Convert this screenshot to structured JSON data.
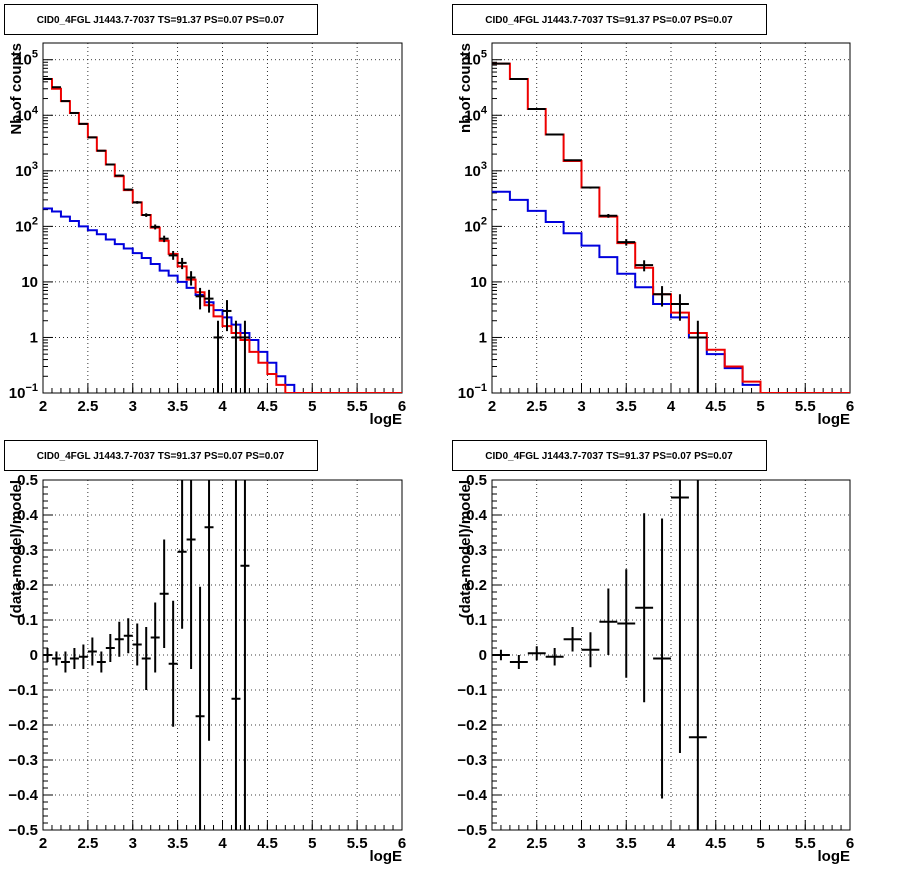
{
  "chart_data": [
    {
      "id": "top-left",
      "type": "line",
      "title": "CID0_4FGL J1443.7-7037 TS=91.37 PS=0.07 PS=0.07",
      "xlabel": "logE",
      "ylabel": "Nb of counts",
      "xlim": [
        2,
        6
      ],
      "ylim": [
        0.1,
        200000
      ],
      "yscale": "log",
      "xticks": [
        "2",
        "2.5",
        "3",
        "3.5",
        "4",
        "4.5",
        "5",
        "5.5",
        "6"
      ],
      "yticks": [
        {
          "v": 0.1,
          "base": "10",
          "exp": "−1"
        },
        {
          "v": 1,
          "base": "1",
          "exp": ""
        },
        {
          "v": 10,
          "base": "10",
          "exp": ""
        },
        {
          "v": 100,
          "base": "10",
          "exp": "2"
        },
        {
          "v": 1000,
          "base": "10",
          "exp": "3"
        },
        {
          "v": 10000,
          "base": "10",
          "exp": "4"
        },
        {
          "v": 100000,
          "base": "10",
          "exp": "5"
        }
      ],
      "grid": true,
      "bin_edges": [
        2.0,
        2.1,
        2.2,
        2.3,
        2.4,
        2.5,
        2.6,
        2.7,
        2.8,
        2.9,
        3.0,
        3.1,
        3.2,
        3.3,
        3.4,
        3.5,
        3.6,
        3.7,
        3.8,
        3.9,
        4.0,
        4.1,
        4.2,
        4.3,
        4.4,
        4.5,
        4.6,
        4.7,
        4.8,
        4.9,
        5.0,
        5.1,
        5.2,
        5.3,
        5.4,
        5.5,
        5.6,
        5.7,
        5.8,
        5.9,
        6.0
      ],
      "series": [
        {
          "name": "",
          "color": "#ee0000",
          "values": [
            45000,
            30000,
            18000,
            11000,
            7000,
            4000,
            2300,
            1300,
            800,
            450,
            270,
            160,
            95,
            55,
            32,
            19,
            11,
            6.5,
            3.8,
            2.4,
            1.6,
            1.2,
            0.9,
            0.55,
            0.35,
            0.22,
            0.14,
            0.1,
            0.1,
            0.1,
            0.1,
            0.1,
            0.1,
            0.1,
            0.1,
            0.1,
            0.1,
            0.1,
            0.1,
            0.1
          ]
        },
        {
          "name": "",
          "color": "#0000dd",
          "values": [
            210,
            185,
            150,
            125,
            100,
            85,
            72,
            58,
            48,
            40,
            33,
            27,
            21,
            16,
            13,
            10,
            7.8,
            5.8,
            4.3,
            3.1,
            2.3,
            1.7,
            1.2,
            0.9,
            0.55,
            0.35,
            0.2,
            0.14,
            0.1,
            0.1,
            0.1,
            0.1,
            0.1,
            0.1,
            0.1,
            0.1,
            0.1,
            0.1,
            0.1,
            0.1
          ]
        }
      ],
      "data_points": [
        {
          "x": 2.05,
          "y": 45000,
          "ylo": 44600,
          "yhi": 45400
        },
        {
          "x": 2.15,
          "y": 32000,
          "ylo": 31700,
          "yhi": 32300
        },
        {
          "x": 2.25,
          "y": 18000,
          "ylo": 17800,
          "yhi": 18200
        },
        {
          "x": 2.35,
          "y": 11000,
          "ylo": 10800,
          "yhi": 11200
        },
        {
          "x": 2.45,
          "y": 7000,
          "ylo": 6900,
          "yhi": 7100
        },
        {
          "x": 2.55,
          "y": 4000,
          "ylo": 3930,
          "yhi": 4070
        },
        {
          "x": 2.65,
          "y": 2300,
          "ylo": 2250,
          "yhi": 2350
        },
        {
          "x": 2.75,
          "y": 1300,
          "ylo": 1260,
          "yhi": 1340
        },
        {
          "x": 2.85,
          "y": 820,
          "ylo": 790,
          "yhi": 850
        },
        {
          "x": 2.95,
          "y": 460,
          "ylo": 440,
          "yhi": 480
        },
        {
          "x": 3.05,
          "y": 270,
          "ylo": 255,
          "yhi": 285
        },
        {
          "x": 3.15,
          "y": 160,
          "ylo": 148,
          "yhi": 172
        },
        {
          "x": 3.25,
          "y": 98,
          "ylo": 88,
          "yhi": 108
        },
        {
          "x": 3.35,
          "y": 60,
          "ylo": 52,
          "yhi": 68
        },
        {
          "x": 3.45,
          "y": 30,
          "ylo": 25,
          "yhi": 36
        },
        {
          "x": 3.55,
          "y": 22,
          "ylo": 17,
          "yhi": 27
        },
        {
          "x": 3.65,
          "y": 12,
          "ylo": 8.6,
          "yhi": 15.6
        },
        {
          "x": 3.75,
          "y": 5.5,
          "ylo": 3.2,
          "yhi": 7.8
        },
        {
          "x": 3.85,
          "y": 5,
          "ylo": 2.8,
          "yhi": 7.2
        },
        {
          "x": 3.95,
          "y": 1,
          "ylo": 0.1,
          "yhi": 2
        },
        {
          "x": 4.05,
          "y": 3,
          "ylo": 1.3,
          "yhi": 4.7
        },
        {
          "x": 4.15,
          "y": 1,
          "ylo": 0.1,
          "yhi": 2
        },
        {
          "x": 4.25,
          "y": 1,
          "ylo": 0.1,
          "yhi": 2
        }
      ]
    },
    {
      "id": "top-right",
      "type": "line",
      "title": "CID0_4FGL J1443.7-7037 TS=91.37 PS=0.07 PS=0.07",
      "xlabel": "logE",
      "ylabel": "nb of counts",
      "xlim": [
        2,
        6
      ],
      "ylim": [
        0.1,
        200000
      ],
      "yscale": "log",
      "xticks": [
        "2",
        "2.5",
        "3",
        "3.5",
        "4",
        "4.5",
        "5",
        "5.5",
        "6"
      ],
      "yticks": [
        {
          "v": 0.1,
          "base": "10",
          "exp": "−1"
        },
        {
          "v": 1,
          "base": "1",
          "exp": ""
        },
        {
          "v": 10,
          "base": "10",
          "exp": ""
        },
        {
          "v": 100,
          "base": "10",
          "exp": "2"
        },
        {
          "v": 1000,
          "base": "10",
          "exp": "3"
        },
        {
          "v": 10000,
          "base": "10",
          "exp": "4"
        },
        {
          "v": 100000,
          "base": "10",
          "exp": "5"
        }
      ],
      "grid": true,
      "bin_edges": [
        2.0,
        2.2,
        2.4,
        2.6,
        2.8,
        3.0,
        3.2,
        3.4,
        3.6,
        3.8,
        4.0,
        4.2,
        4.4,
        4.6,
        4.8,
        5.0,
        5.2,
        5.4,
        5.6,
        5.8,
        6.0
      ],
      "series": [
        {
          "name": "",
          "color": "#ee0000",
          "values": [
            85000,
            45000,
            13000,
            4500,
            1500,
            500,
            150,
            50,
            18,
            6,
            2.8,
            1.2,
            0.6,
            0.3,
            0.16,
            0.1,
            0.1,
            0.1,
            0.1,
            0.1
          ]
        },
        {
          "name": "",
          "color": "#0000dd",
          "values": [
            420,
            300,
            190,
            120,
            75,
            45,
            28,
            14,
            8,
            4,
            2.3,
            1,
            0.5,
            0.28,
            0.14,
            0.1,
            0.1,
            0.1,
            0.1,
            0.1
          ]
        }
      ],
      "data_points": [
        {
          "x": 2.1,
          "y": 85000,
          "ylo": 84700,
          "yhi": 85300
        },
        {
          "x": 2.3,
          "y": 45000,
          "ylo": 44800,
          "yhi": 45200
        },
        {
          "x": 2.5,
          "y": 13000,
          "ylo": 12880,
          "yhi": 13120
        },
        {
          "x": 2.7,
          "y": 4500,
          "ylo": 4430,
          "yhi": 4570
        },
        {
          "x": 2.9,
          "y": 1550,
          "ylo": 1510,
          "yhi": 1590
        },
        {
          "x": 3.1,
          "y": 500,
          "ylo": 478,
          "yhi": 522
        },
        {
          "x": 3.3,
          "y": 155,
          "ylo": 143,
          "yhi": 167
        },
        {
          "x": 3.5,
          "y": 52,
          "ylo": 45,
          "yhi": 59
        },
        {
          "x": 3.7,
          "y": 20,
          "ylo": 15.5,
          "yhi": 24.5
        },
        {
          "x": 3.9,
          "y": 6,
          "ylo": 3.6,
          "yhi": 8.4
        },
        {
          "x": 4.1,
          "y": 4,
          "ylo": 2,
          "yhi": 6
        },
        {
          "x": 4.3,
          "y": 1,
          "ylo": 0.1,
          "yhi": 2
        }
      ]
    },
    {
      "id": "bottom-left",
      "type": "scatter",
      "title": "CID0_4FGL J1443.7-7037 TS=91.37 PS=0.07 PS=0.07",
      "xlabel": "logE",
      "ylabel": "(data-model)/model",
      "xlim": [
        2,
        6
      ],
      "ylim": [
        -0.5,
        0.5
      ],
      "yscale": "linear",
      "xticks": [
        "2",
        "2.5",
        "3",
        "3.5",
        "4",
        "4.5",
        "5",
        "5.5",
        "6"
      ],
      "yticks_linear": [
        "−0.5",
        "−0.4",
        "−0.3",
        "−0.2",
        "−0.1",
        "0",
        "0.1",
        "0.2",
        "0.3",
        "0.4",
        "0.5"
      ],
      "grid": true,
      "bin_width": 0.1,
      "data_points": [
        {
          "x": 2.05,
          "y": 0.0,
          "err": 0.02
        },
        {
          "x": 2.15,
          "y": -0.01,
          "err": 0.02
        },
        {
          "x": 2.25,
          "y": -0.02,
          "err": 0.03
        },
        {
          "x": 2.35,
          "y": -0.01,
          "err": 0.03
        },
        {
          "x": 2.45,
          "y": -0.005,
          "err": 0.035
        },
        {
          "x": 2.55,
          "y": 0.01,
          "err": 0.04
        },
        {
          "x": 2.65,
          "y": -0.02,
          "err": 0.03
        },
        {
          "x": 2.75,
          "y": 0.02,
          "err": 0.04
        },
        {
          "x": 2.85,
          "y": 0.045,
          "err": 0.05
        },
        {
          "x": 2.95,
          "y": 0.055,
          "err": 0.05
        },
        {
          "x": 3.05,
          "y": 0.03,
          "err": 0.06
        },
        {
          "x": 3.15,
          "y": -0.01,
          "err": 0.09
        },
        {
          "x": 3.25,
          "y": 0.05,
          "err": 0.1
        },
        {
          "x": 3.35,
          "y": 0.175,
          "err": 0.155
        },
        {
          "x": 3.45,
          "y": -0.025,
          "err": 0.18
        },
        {
          "x": 3.55,
          "y": 0.295,
          "err": 0.22
        },
        {
          "x": 3.65,
          "y": 0.33,
          "err": 0.37
        },
        {
          "x": 3.75,
          "y": -0.175,
          "err": 0.37
        },
        {
          "x": 3.85,
          "y": 0.365,
          "err": 0.61
        },
        {
          "x": 4.15,
          "y": -0.125,
          "err": 1.0
        },
        {
          "x": 4.25,
          "y": 0.255,
          "err": 1.0
        }
      ]
    },
    {
      "id": "bottom-right",
      "type": "scatter",
      "title": "CID0_4FGL J1443.7-7037 TS=91.37 PS=0.07 PS=0.07",
      "xlabel": "logE",
      "ylabel": "(data-model)/model",
      "xlim": [
        2,
        6
      ],
      "ylim": [
        -0.5,
        0.5
      ],
      "yscale": "linear",
      "xticks": [
        "2",
        "2.5",
        "3",
        "3.5",
        "4",
        "4.5",
        "5",
        "5.5",
        "6"
      ],
      "yticks_linear": [
        "−0.5",
        "−0.4",
        "−0.3",
        "−0.2",
        "−0.1",
        "0",
        "0.1",
        "0.2",
        "0.3",
        "0.4",
        "0.5"
      ],
      "grid": true,
      "bin_width": 0.2,
      "data_points": [
        {
          "x": 2.1,
          "y": 0.0,
          "err": 0.015
        },
        {
          "x": 2.3,
          "y": -0.02,
          "err": 0.02
        },
        {
          "x": 2.5,
          "y": 0.005,
          "err": 0.02
        },
        {
          "x": 2.7,
          "y": -0.005,
          "err": 0.025
        },
        {
          "x": 2.9,
          "y": 0.045,
          "err": 0.035
        },
        {
          "x": 3.1,
          "y": 0.015,
          "err": 0.05
        },
        {
          "x": 3.3,
          "y": 0.095,
          "err": 0.095
        },
        {
          "x": 3.5,
          "y": 0.09,
          "err": 0.155
        },
        {
          "x": 3.7,
          "y": 0.135,
          "err": 0.27
        },
        {
          "x": 3.9,
          "y": -0.01,
          "err": 0.4
        },
        {
          "x": 4.1,
          "y": 0.45,
          "err": 0.73
        },
        {
          "x": 4.3,
          "y": -0.235,
          "err": 1.0
        }
      ]
    }
  ]
}
